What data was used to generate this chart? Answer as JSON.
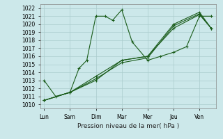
{
  "title": "",
  "xlabel": "Pression niveau de la mer( hPa )",
  "background_color": "#cce8ea",
  "grid_color": "#aacccc",
  "line_color": "#1a5c1a",
  "x_labels": [
    "Lun",
    "Sam",
    "Dim",
    "Mar",
    "Mer",
    "Jeu",
    "Ven"
  ],
  "x_positions": [
    0,
    1,
    2,
    3,
    4,
    5,
    6
  ],
  "ylim": [
    1009.5,
    1022.5
  ],
  "yticks": [
    1010,
    1011,
    1012,
    1013,
    1014,
    1015,
    1016,
    1017,
    1018,
    1019,
    1020,
    1021,
    1022
  ],
  "lines": [
    {
      "x": [
        0,
        0.45,
        1.0,
        1.35,
        1.65,
        2.0,
        2.35,
        2.65,
        3.0,
        3.4,
        4.0,
        4.5,
        5.0,
        5.5,
        6.0,
        6.45
      ],
      "y": [
        1013,
        1011,
        1011.5,
        1014.5,
        1015.5,
        1021.0,
        1021.0,
        1020.5,
        1021.8,
        1017.8,
        1015.5,
        1016.0,
        1016.5,
        1017.2,
        1021.0,
        1021.0
      ]
    },
    {
      "x": [
        0,
        1.0,
        2.0,
        3.0,
        4.0,
        5.0,
        6.0,
        6.45
      ],
      "y": [
        1010.5,
        1011.5,
        1013.0,
        1015.5,
        1016.0,
        1019.5,
        1021.2,
        1019.5
      ]
    },
    {
      "x": [
        0,
        1.0,
        2.0,
        3.0,
        4.0,
        5.0,
        6.0,
        6.45
      ],
      "y": [
        1010.5,
        1011.5,
        1013.2,
        1015.2,
        1015.8,
        1019.8,
        1021.3,
        1019.5
      ]
    },
    {
      "x": [
        0,
        1.0,
        2.0,
        3.0,
        4.0,
        5.0,
        6.0,
        6.45
      ],
      "y": [
        1010.5,
        1011.5,
        1013.5,
        1015.5,
        1016.0,
        1020.0,
        1021.5,
        1019.5
      ]
    }
  ]
}
